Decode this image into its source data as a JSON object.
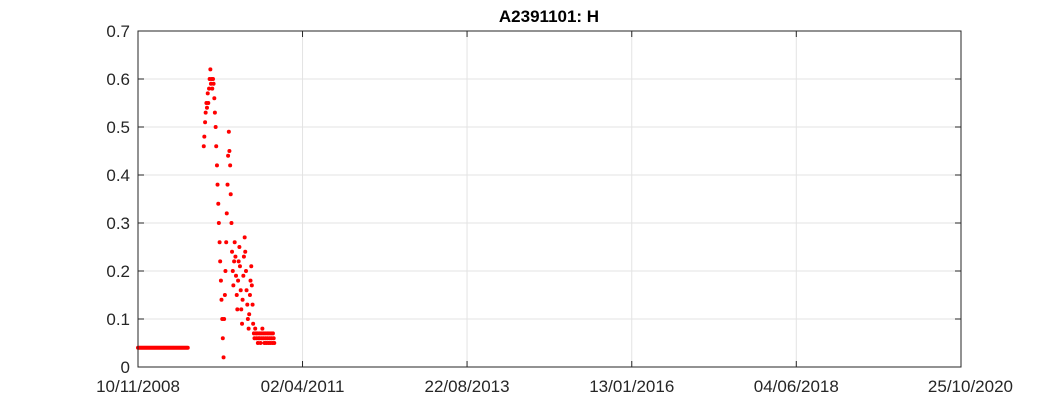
{
  "chart_data": {
    "type": "scatter",
    "title": "A2391101: H",
    "xlabel": "",
    "ylabel": "",
    "x_axis_type": "date",
    "xlim": [
      "2008-11-10",
      "2020-10-25"
    ],
    "ylim": [
      0,
      0.7
    ],
    "grid": true,
    "legend": "none",
    "colors": {
      "marker": "#ff0000",
      "grid": "#e3e3e3",
      "axis": "#262626"
    },
    "x_tick_labels": [
      "10/11/2008",
      "02/04/2011",
      "22/08/2013",
      "13/01/2016",
      "04/06/2018",
      "25/10/2020"
    ],
    "x_tick_dates": [
      "2008-11-10",
      "2011-04-02",
      "2013-08-22",
      "2016-01-13",
      "2018-06-04",
      "2020-10-25"
    ],
    "y_tick_labels": [
      "0",
      "0.1",
      "0.2",
      "0.3",
      "0.4",
      "0.5",
      "0.6",
      "0.7"
    ],
    "y_tick_values": [
      0,
      0.1,
      0.2,
      0.3,
      0.4,
      0.5,
      0.6,
      0.7
    ],
    "series": [
      {
        "x": [
          "2008-11-10",
          "2008-11-16",
          "2008-11-22",
          "2008-11-28",
          "2008-12-04",
          "2008-12-10",
          "2008-12-16",
          "2008-12-22",
          "2008-12-28",
          "2009-01-03",
          "2009-01-09",
          "2009-01-15",
          "2009-01-21",
          "2009-01-27",
          "2009-02-02",
          "2009-02-08",
          "2009-02-14",
          "2009-02-20",
          "2009-02-26",
          "2009-03-04",
          "2009-03-10",
          "2009-03-16",
          "2009-03-22",
          "2009-03-28",
          "2009-04-03",
          "2009-04-09",
          "2009-04-15",
          "2009-04-21",
          "2009-04-27",
          "2009-05-03",
          "2009-05-09",
          "2009-05-15",
          "2009-05-21",
          "2009-05-27",
          "2009-06-02",
          "2009-06-08",
          "2009-06-14",
          "2009-06-20",
          "2009-06-26",
          "2009-07-02",
          "2009-07-08",
          "2009-07-14",
          "2009-07-20",
          "2009-07-26",
          "2009-08-01",
          "2009-10-25",
          "2009-10-28",
          "2009-11-01",
          "2009-11-04",
          "2009-11-08",
          "2009-11-11",
          "2009-11-15",
          "2009-11-18",
          "2009-11-22",
          "2009-11-25",
          "2009-11-29",
          "2009-12-02",
          "2009-12-06",
          "2009-12-09",
          "2009-12-13",
          "2009-12-16",
          "2009-12-20",
          "2009-12-23",
          "2009-12-27",
          "2009-12-30",
          "2010-01-03",
          "2010-01-06",
          "2010-01-10",
          "2010-01-13",
          "2010-01-17",
          "2010-01-20",
          "2010-01-24",
          "2010-01-27",
          "2010-01-31",
          "2010-02-03",
          "2010-02-07",
          "2010-02-10",
          "2010-02-14",
          "2010-02-17",
          "2010-02-21",
          "2010-02-24",
          "2010-02-28",
          "2010-03-03",
          "2010-03-07",
          "2010-03-10",
          "2010-03-14",
          "2010-03-17",
          "2010-03-21",
          "2010-03-24",
          "2010-03-28",
          "2010-03-31",
          "2010-04-04",
          "2010-04-07",
          "2010-04-11",
          "2010-04-14",
          "2010-04-18",
          "2010-04-21",
          "2010-04-25",
          "2010-04-28",
          "2010-05-02",
          "2010-05-05",
          "2010-05-09",
          "2010-05-12",
          "2010-05-16",
          "2010-05-19",
          "2010-05-23",
          "2010-05-26",
          "2010-05-30",
          "2010-06-02",
          "2010-06-06",
          "2010-06-09",
          "2010-06-13",
          "2010-06-16",
          "2010-06-20",
          "2010-06-23",
          "2010-06-27",
          "2010-06-30",
          "2010-07-04",
          "2010-07-07",
          "2010-07-11",
          "2010-07-14",
          "2010-07-18",
          "2010-07-21",
          "2010-07-25",
          "2010-07-28",
          "2010-08-01",
          "2010-08-04",
          "2010-08-08",
          "2010-08-11",
          "2010-08-15",
          "2010-08-18",
          "2010-08-22",
          "2010-08-25",
          "2010-08-29",
          "2010-09-01",
          "2010-09-05",
          "2010-09-08",
          "2010-09-12",
          "2010-09-15",
          "2010-09-19",
          "2010-09-22",
          "2010-09-26",
          "2010-09-29",
          "2010-10-03",
          "2010-10-06",
          "2010-10-10",
          "2010-10-13",
          "2010-10-17",
          "2010-10-20",
          "2010-10-24",
          "2010-10-27",
          "2010-10-31",
          "2010-11-03"
        ],
        "y": [
          0.04,
          0.04,
          0.04,
          0.04,
          0.04,
          0.04,
          0.04,
          0.04,
          0.04,
          0.04,
          0.04,
          0.04,
          0.04,
          0.04,
          0.04,
          0.04,
          0.04,
          0.04,
          0.04,
          0.04,
          0.04,
          0.04,
          0.04,
          0.04,
          0.04,
          0.04,
          0.04,
          0.04,
          0.04,
          0.04,
          0.04,
          0.04,
          0.04,
          0.04,
          0.04,
          0.04,
          0.04,
          0.04,
          0.04,
          0.04,
          0.04,
          0.04,
          0.04,
          0.04,
          0.04,
          0.46,
          0.48,
          0.51,
          0.53,
          0.55,
          0.54,
          0.57,
          0.55,
          0.58,
          0.6,
          0.62,
          0.59,
          0.6,
          0.58,
          0.6,
          0.59,
          0.56,
          0.53,
          0.5,
          0.46,
          0.42,
          0.38,
          0.34,
          0.3,
          0.26,
          0.22,
          0.18,
          0.14,
          0.1,
          0.06,
          0.02,
          0.1,
          0.15,
          0.2,
          0.26,
          0.32,
          0.38,
          0.44,
          0.49,
          0.45,
          0.42,
          0.36,
          0.3,
          0.24,
          0.2,
          0.17,
          0.22,
          0.26,
          0.23,
          0.19,
          0.15,
          0.12,
          0.18,
          0.22,
          0.25,
          0.21,
          0.16,
          0.12,
          0.09,
          0.14,
          0.19,
          0.23,
          0.27,
          0.24,
          0.2,
          0.16,
          0.13,
          0.1,
          0.08,
          0.11,
          0.15,
          0.18,
          0.21,
          0.17,
          0.13,
          0.09,
          0.07,
          0.06,
          0.08,
          0.07,
          0.06,
          0.07,
          0.05,
          0.06,
          0.07,
          0.06,
          0.05,
          0.07,
          0.06,
          0.08,
          0.07,
          0.06,
          0.05,
          0.07,
          0.06,
          0.05,
          0.07,
          0.06,
          0.05,
          0.07,
          0.06,
          0.05,
          0.07,
          0.06,
          0.05,
          0.07,
          0.06,
          0.05
        ]
      }
    ]
  }
}
